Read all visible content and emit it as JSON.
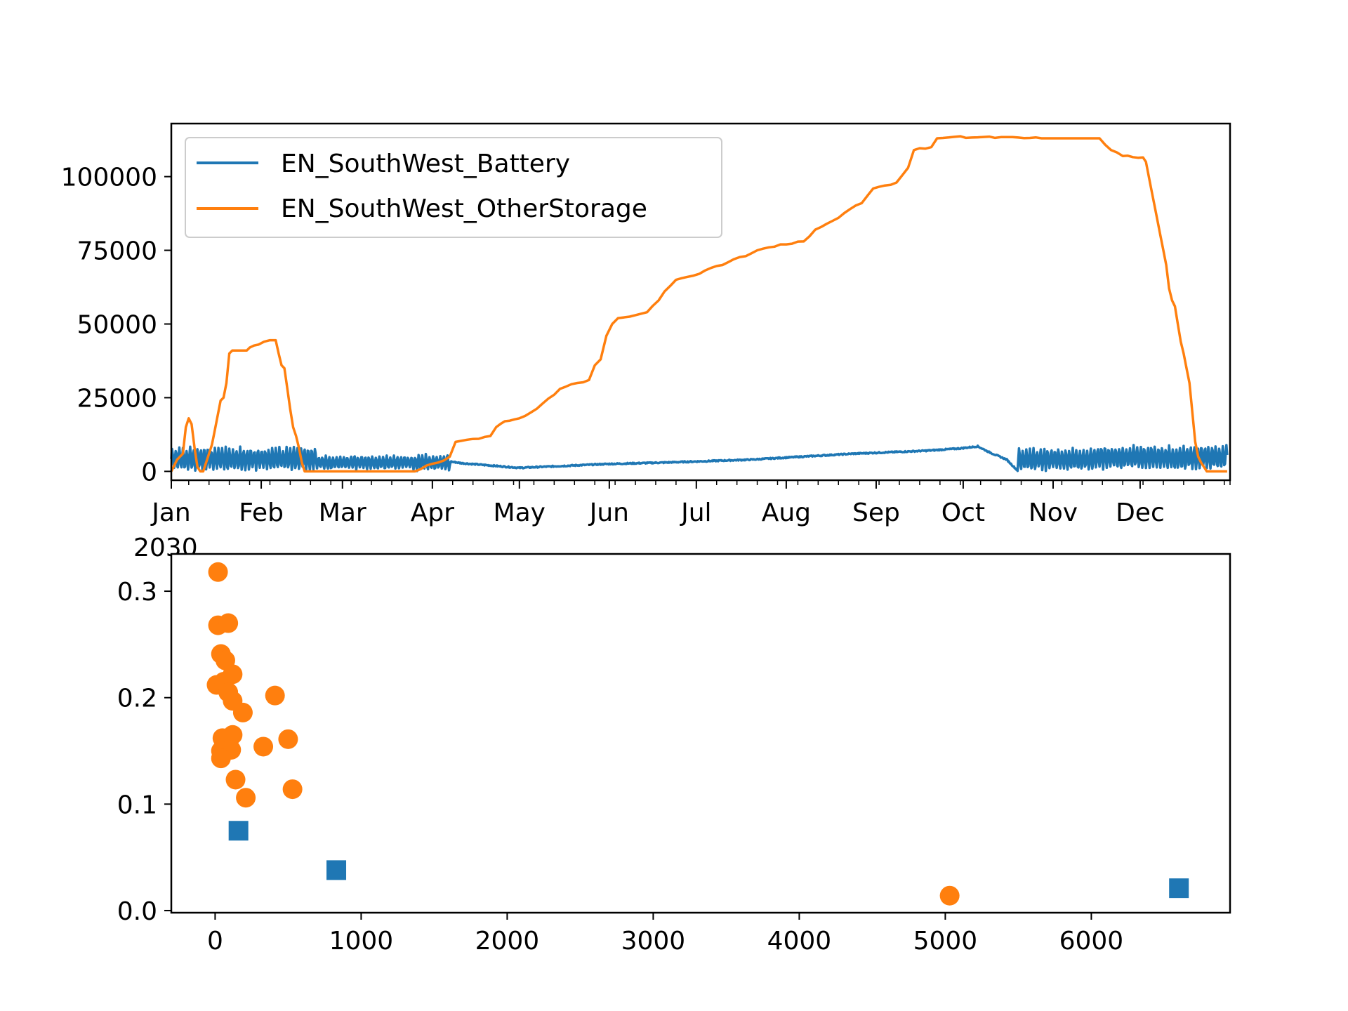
{
  "chart_data": [
    {
      "type": "line",
      "year_label": "2030",
      "ylim": [
        -3000,
        118000
      ],
      "yticks": [
        0,
        25000,
        50000,
        75000,
        100000
      ],
      "ytick_labels": [
        "0",
        "25000",
        "50000",
        "75000",
        "100000"
      ],
      "xtick_labels": [
        "Jan",
        "Feb",
        "Mar",
        "Apr",
        "May",
        "Jun",
        "Jul",
        "Aug",
        "Sep",
        "Oct",
        "Nov",
        "Dec"
      ],
      "legend": "upper left",
      "series": [
        {
          "name": "EN_SouthWest_Battery",
          "color": "#1f77b4",
          "x_unit": "day of year",
          "points": [
            [
              0,
              0
            ],
            [
              45,
              8000
            ],
            [
              52,
              3000
            ],
            [
              88,
              3500
            ],
            [
              95,
              3500
            ],
            [
              100,
              2800
            ],
            [
              110,
              2000
            ],
            [
              120,
              1200
            ],
            [
              150,
              2500
            ],
            [
              170,
              3000
            ],
            [
              200,
              4000
            ],
            [
              235,
              6000
            ],
            [
              260,
              7000
            ],
            [
              272,
              7800
            ],
            [
              278,
              8500
            ],
            [
              282,
              6500
            ],
            [
              288,
              4000
            ],
            [
              292,
              0
            ],
            [
              297,
              3000
            ],
            [
              305,
              8000
            ],
            [
              313,
              3000
            ],
            [
              318,
              500
            ],
            [
              323,
              3000
            ],
            [
              330,
              7000
            ],
            [
              345,
              6000
            ],
            [
              358,
              4000
            ],
            [
              364,
              4000
            ]
          ],
          "oscillation": [
            {
              "from_day": 0,
              "to_day": 50,
              "low": 0,
              "high": 8500
            },
            {
              "from_day": 50,
              "to_day": 84,
              "low": 500,
              "high": 5500
            },
            {
              "from_day": 84,
              "to_day": 96,
              "low": 0,
              "high": 6000
            },
            {
              "from_day": 292,
              "to_day": 318,
              "low": 0,
              "high": 8000
            },
            {
              "from_day": 318,
              "to_day": 364,
              "low": 500,
              "high": 9000
            }
          ]
        },
        {
          "name": "EN_SouthWest_OtherStorage",
          "color": "#ff7f0e",
          "x_unit": "day of year",
          "points": [
            [
              0,
              0
            ],
            [
              2,
              4000
            ],
            [
              4,
              6000
            ],
            [
              5,
              15000
            ],
            [
              6,
              18000
            ],
            [
              7,
              16000
            ],
            [
              8,
              8000
            ],
            [
              9,
              1500
            ],
            [
              10,
              0
            ],
            [
              11,
              0
            ],
            [
              12,
              3000
            ],
            [
              13,
              6000
            ],
            [
              14,
              9000
            ],
            [
              15,
              14000
            ],
            [
              16,
              19000
            ],
            [
              17,
              24000
            ],
            [
              18,
              25000
            ],
            [
              19,
              30000
            ],
            [
              20,
              40000
            ],
            [
              21,
              41000
            ],
            [
              26,
              41000
            ],
            [
              27,
              42000
            ],
            [
              30,
              43000
            ],
            [
              32,
              44000
            ],
            [
              34,
              44500
            ],
            [
              36,
              44500
            ],
            [
              37,
              40000
            ],
            [
              38,
              36000
            ],
            [
              39,
              35000
            ],
            [
              40,
              28000
            ],
            [
              41,
              21000
            ],
            [
              42,
              15000
            ],
            [
              43,
              12000
            ],
            [
              44,
              8000
            ],
            [
              45,
              3000
            ],
            [
              46,
              0
            ],
            [
              84,
              0
            ],
            [
              88,
              2000
            ],
            [
              92,
              3000
            ],
            [
              96,
              5000
            ],
            [
              98,
              10000
            ],
            [
              104,
              11000
            ],
            [
              110,
              12000
            ],
            [
              112,
              15000
            ],
            [
              115,
              17000
            ],
            [
              120,
              18000
            ],
            [
              124,
              20000
            ],
            [
              128,
              23000
            ],
            [
              132,
              26000
            ],
            [
              134,
              28000
            ],
            [
              140,
              30000
            ],
            [
              144,
              31000
            ],
            [
              146,
              36000
            ],
            [
              148,
              38000
            ],
            [
              150,
              46000
            ],
            [
              152,
              50000
            ],
            [
              154,
              52000
            ],
            [
              160,
              53000
            ],
            [
              164,
              54000
            ],
            [
              168,
              58000
            ],
            [
              170,
              61000
            ],
            [
              174,
              65000
            ],
            [
              178,
              66000
            ],
            [
              182,
              67000
            ],
            [
              186,
              69000
            ],
            [
              190,
              70000
            ],
            [
              194,
              72000
            ],
            [
              198,
              73000
            ],
            [
              202,
              75000
            ],
            [
              206,
              76000
            ],
            [
              210,
              77000
            ],
            [
              218,
              78000
            ],
            [
              222,
              82000
            ],
            [
              226,
              84000
            ],
            [
              230,
              86000
            ],
            [
              234,
              89000
            ],
            [
              238,
              91000
            ],
            [
              242,
              96000
            ],
            [
              246,
              97000
            ],
            [
              250,
              98000
            ],
            [
              254,
              103000
            ],
            [
              256,
              109000
            ],
            [
              262,
              110000
            ],
            [
              264,
              113000
            ],
            [
              270,
              113500
            ],
            [
              300,
              113000
            ],
            [
              320,
              113000
            ],
            [
              324,
              109000
            ],
            [
              328,
              107000
            ],
            [
              335,
              106500
            ],
            [
              336,
              105000
            ],
            [
              337,
              100000
            ],
            [
              338,
              95000
            ],
            [
              339,
              90000
            ],
            [
              340,
              85000
            ],
            [
              341,
              80000
            ],
            [
              342,
              75000
            ],
            [
              343,
              70000
            ],
            [
              344,
              62000
            ],
            [
              345,
              58000
            ],
            [
              346,
              56000
            ],
            [
              347,
              50000
            ],
            [
              348,
              44000
            ],
            [
              349,
              40000
            ],
            [
              350,
              35000
            ],
            [
              351,
              30000
            ],
            [
              352,
              20000
            ],
            [
              353,
              10000
            ],
            [
              354,
              5000
            ],
            [
              355,
              3000
            ],
            [
              356,
              1500
            ],
            [
              357,
              0
            ],
            [
              364,
              0
            ]
          ]
        }
      ]
    },
    {
      "type": "scatter",
      "xlim": [
        -300,
        6950
      ],
      "ylim": [
        -0.002,
        0.335
      ],
      "xticks": [
        0,
        1000,
        2000,
        3000,
        4000,
        5000,
        6000
      ],
      "xtick_labels": [
        "0",
        "1000",
        "2000",
        "3000",
        "4000",
        "5000",
        "6000"
      ],
      "yticks": [
        0.0,
        0.1,
        0.2,
        0.3
      ],
      "ytick_labels": [
        "0.0",
        "0.1",
        "0.2",
        "0.3"
      ],
      "series": [
        {
          "marker": "square",
          "color": "#1f77b4",
          "points": [
            [
              160,
              0.075
            ],
            [
              830,
              0.038
            ],
            [
              6600,
              0.021
            ]
          ]
        },
        {
          "marker": "circle",
          "color": "#ff7f0e",
          "points": [
            [
              20,
              0.318
            ],
            [
              20,
              0.268
            ],
            [
              90,
              0.27
            ],
            [
              40,
              0.241
            ],
            [
              70,
              0.235
            ],
            [
              10,
              0.212
            ],
            [
              60,
              0.215
            ],
            [
              120,
              0.222
            ],
            [
              90,
              0.205
            ],
            [
              120,
              0.197
            ],
            [
              190,
              0.186
            ],
            [
              410,
              0.202
            ],
            [
              50,
              0.162
            ],
            [
              120,
              0.165
            ],
            [
              40,
              0.15
            ],
            [
              110,
              0.151
            ],
            [
              40,
              0.143
            ],
            [
              330,
              0.154
            ],
            [
              500,
              0.161
            ],
            [
              140,
              0.123
            ],
            [
              210,
              0.106
            ],
            [
              530,
              0.114
            ],
            [
              5030,
              0.014
            ]
          ]
        }
      ]
    }
  ]
}
